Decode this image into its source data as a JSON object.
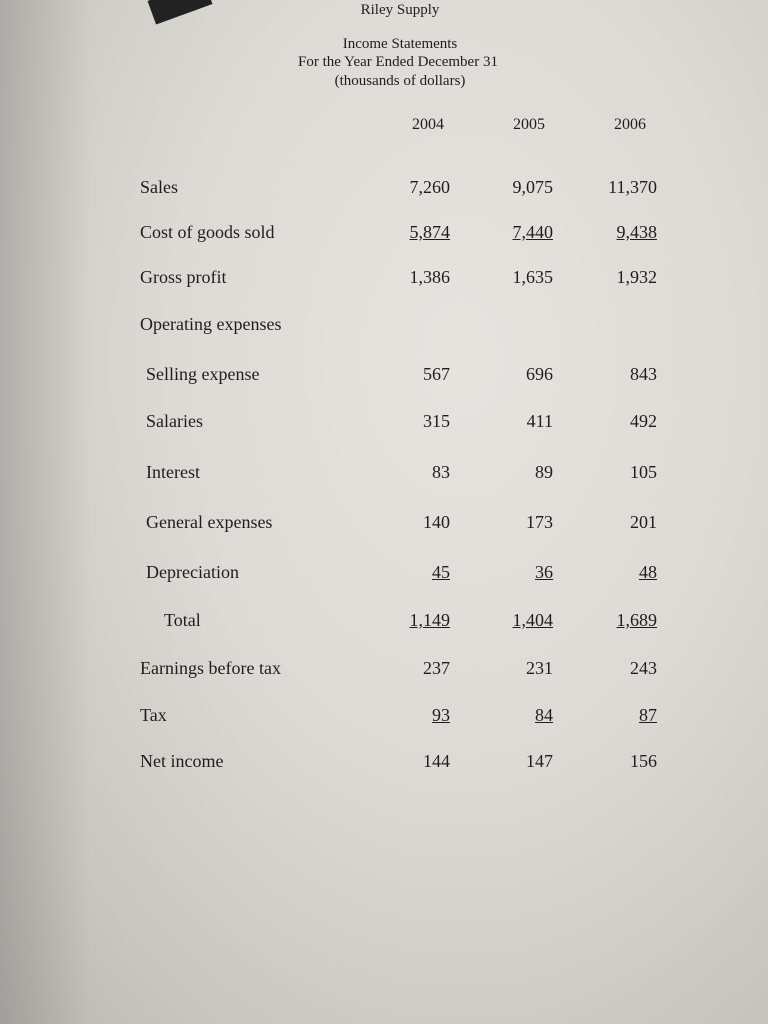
{
  "header": {
    "company": "Riley Supply",
    "title": "Income Statements",
    "period": "For the Year Ended December 31",
    "units": "(thousands of dollars)"
  },
  "table": {
    "columns": [
      "2004",
      "2005",
      "2006"
    ],
    "rows": [
      {
        "label": "Sales",
        "values": [
          "7,260",
          "9,075",
          "11,370"
        ]
      },
      {
        "label": "Cost of goods sold",
        "values": [
          "5,874",
          "7,440",
          "9,438"
        ]
      },
      {
        "label": "Gross profit",
        "values": [
          "1,386",
          "1,635",
          "1,932"
        ]
      },
      {
        "label": "Operating expenses"
      },
      {
        "label": "Selling expense",
        "values": [
          "567",
          "696",
          "843"
        ]
      },
      {
        "label": "Salaries",
        "values": [
          "315",
          "411",
          "492"
        ]
      },
      {
        "label": "Interest",
        "values": [
          "83",
          "89",
          "105"
        ]
      },
      {
        "label": "General expenses",
        "values": [
          "140",
          "173",
          "201"
        ]
      },
      {
        "label": "Depreciation",
        "values": [
          "45",
          "36",
          "48"
        ]
      },
      {
        "label": "Total",
        "values": [
          "1,149",
          "1,404",
          "1,689"
        ]
      },
      {
        "label": "Earnings before tax",
        "values": [
          "237",
          "231",
          "243"
        ]
      },
      {
        "label": "Tax",
        "values": [
          "93",
          "84",
          "87"
        ]
      },
      {
        "label": "Net income",
        "values": [
          "144",
          "147",
          "156"
        ]
      }
    ]
  }
}
